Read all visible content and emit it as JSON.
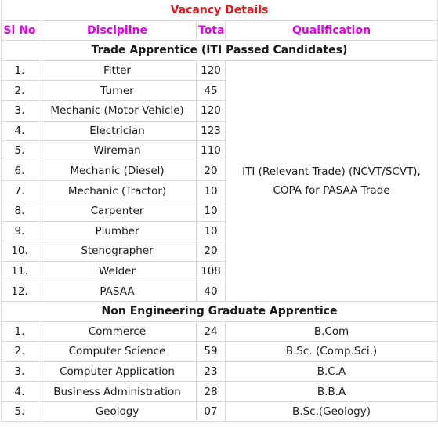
{
  "title": "Vacancy Details",
  "headers": {
    "sl_no": "Sl No",
    "discipline": "Discipline",
    "total": "Total",
    "qualification": "Qualification"
  },
  "colors": {
    "title": "#e8141b",
    "header": "#e100e8",
    "border": "#d9d9d9"
  },
  "sections": [
    {
      "title": "Trade Apprentice (ITI Passed Candidates)",
      "merged_qualification": "ITI (Relevant Trade) (NCVT/SCVT), COPA for PASAA Trade",
      "rows": [
        {
          "no": "1.",
          "discipline": "Fitter",
          "total": "120"
        },
        {
          "no": "2.",
          "discipline": "Turner",
          "total": "45"
        },
        {
          "no": "3.",
          "discipline": "Mechanic (Motor Vehicle)",
          "total": "120"
        },
        {
          "no": "4.",
          "discipline": "Electrician",
          "total": "123"
        },
        {
          "no": "5.",
          "discipline": "Wireman",
          "total": "110"
        },
        {
          "no": "6.",
          "discipline": "Mechanic (Diesel)",
          "total": "20"
        },
        {
          "no": "7.",
          "discipline": "Mechanic (Tractor)",
          "total": "10"
        },
        {
          "no": "8.",
          "discipline": "Carpenter",
          "total": "10"
        },
        {
          "no": "9.",
          "discipline": "Plumber",
          "total": "10"
        },
        {
          "no": "10.",
          "discipline": "Stenographer",
          "total": "20"
        },
        {
          "no": "11.",
          "discipline": "Welder",
          "total": "108"
        },
        {
          "no": "12.",
          "discipline": "PASAA",
          "total": "40"
        }
      ]
    },
    {
      "title": "Non Engineering Graduate Apprentice",
      "rows": [
        {
          "no": "1.",
          "discipline": "Commerce",
          "total": "24",
          "qualification": "B.Com"
        },
        {
          "no": "2.",
          "discipline": "Computer Science",
          "total": "59",
          "qualification": "B.Sc. (Comp.Sci.)"
        },
        {
          "no": "3.",
          "discipline": "Computer Application",
          "total": "23",
          "qualification": "B.C.A"
        },
        {
          "no": "4.",
          "discipline": "Business Administration",
          "total": "28",
          "qualification": "B.B.A"
        },
        {
          "no": "5.",
          "discipline": "Geology",
          "total": "07",
          "qualification": "B.Sc.(Geology)"
        }
      ]
    }
  ]
}
